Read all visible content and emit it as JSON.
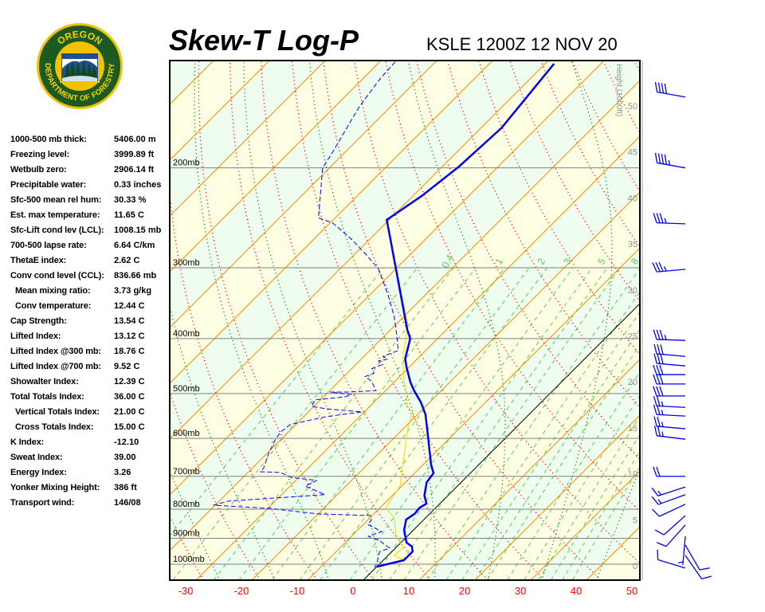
{
  "logo": {
    "top_text": "OREGON",
    "ring_text": "DEPARTMENT OF FORESTRY"
  },
  "header": {
    "title": "Skew-T Log-P",
    "subtitle": "KSLE 1200Z 12 NOV 20"
  },
  "stats": [
    {
      "label": "1000-500 mb thick:",
      "value": "5406.00 m"
    },
    {
      "label": "Freezing level:",
      "value": "3999.89 ft"
    },
    {
      "label": "Wetbulb zero:",
      "value": "2906.14 ft"
    },
    {
      "label": "Precipitable water:",
      "value": "0.33 inches"
    },
    {
      "label": "Sfc-500 mean rel hum:",
      "value": "30.33 %"
    },
    {
      "label": "Est. max temperature:",
      "value": "11.65 C"
    },
    {
      "label": "Sfc-Lift cond lev (LCL):",
      "value": "1008.15 mb"
    },
    {
      "label": "700-500 lapse rate:",
      "value": "6.64 C/km"
    },
    {
      "label": "ThetaE index:",
      "value": "2.62 C"
    },
    {
      "label": "Conv cond level (CCL):",
      "value": "836.66 mb"
    },
    {
      "label": "Mean mixing ratio:",
      "value": "3.73 g/kg",
      "sub": true
    },
    {
      "label": "Conv temperature:",
      "value": "12.44 C",
      "sub": true
    },
    {
      "label": "Cap Strength:",
      "value": "13.54 C"
    },
    {
      "label": "Lifted Index:",
      "value": "13.12 C"
    },
    {
      "label": "Lifted Index @300 mb:",
      "value": "18.76 C"
    },
    {
      "label": "Lifted Index @700 mb:",
      "value": "9.52 C"
    },
    {
      "label": "Showalter Index:",
      "value": "12.39 C"
    },
    {
      "label": "Total Totals Index:",
      "value": "36.00 C"
    },
    {
      "label": "Vertical Totals Index:",
      "value": "21.00 C",
      "sub": true
    },
    {
      "label": "Cross Totals Index:",
      "value": "15.00 C",
      "sub": true
    },
    {
      "label": "K Index:",
      "value": "-12.10"
    },
    {
      "label": "Sweat Index:",
      "value": "39.00"
    },
    {
      "label": "Energy Index:",
      "value": "3.26"
    },
    {
      "label": "Yonker Mixing Height:",
      "value": "386 ft"
    },
    {
      "label": "Transport wind:",
      "value": "146/08"
    }
  ],
  "chart_data": {
    "type": "line",
    "title": "Skew-T Log-P",
    "subtitle": "KSLE 1200Z 12 NOV 20",
    "xlabel": "Temperature (C)",
    "x_ticks": [
      "-30",
      "-20",
      "-10",
      "0",
      "10",
      "20",
      "30",
      "40",
      "50"
    ],
    "x_tick_values": [
      -30,
      -20,
      -10,
      0,
      10,
      20,
      30,
      40,
      50
    ],
    "pressure_levels": [
      200,
      300,
      400,
      500,
      600,
      700,
      800,
      900,
      1000
    ],
    "pressure_labels": [
      "200mb",
      "300mb",
      "400mb",
      "500mb",
      "600mb",
      "700mb",
      "800mb",
      "900mb",
      "1000mb"
    ],
    "height_axis_label": "Height (1000ft)",
    "height_ticks": [
      "0",
      "5",
      "10",
      "15",
      "20",
      "25",
      "30",
      "35",
      "40",
      "45",
      "50"
    ],
    "height_tick_values": [
      0,
      5,
      10,
      15,
      20,
      25,
      30,
      35,
      40,
      45,
      50
    ],
    "mixing_ratio_labels": [
      "0.4",
      "1",
      "2",
      "3",
      "5",
      "8"
    ],
    "mixing_ratio_values": [
      0.4,
      1,
      2,
      3,
      5,
      8
    ],
    "mixing_ratio_lines": [
      0.1,
      0.2,
      0.4,
      0.6,
      1,
      1.5,
      2,
      3,
      4,
      5,
      6,
      8,
      10,
      12,
      14,
      16,
      20,
      24,
      28,
      32,
      36,
      40
    ],
    "pressure_range_mb": [
      1067,
      129
    ],
    "colors": {
      "temperature": "#0000ff",
      "dewpoint": "#0000ff",
      "parcel": "#e0e000",
      "isotherm": "#ff8c00",
      "zero_isotherm": "#000000",
      "dry_adiabat": "#ff0000",
      "moist_adiabat": "#008000",
      "mixing_ratio": "#55cc55",
      "isobar": "#808080",
      "band_a": "#ffffe4",
      "band_b": "#eefdee",
      "axis_labels": "#ff0000",
      "height_labels": "#909090"
    },
    "series": [
      {
        "name": "Temperature",
        "points_p_t": [
          [
            1010,
            0.0
          ],
          [
            984,
            3.7
          ],
          [
            950,
            3.7
          ],
          [
            931,
            2.7
          ],
          [
            916,
            1.0
          ],
          [
            870,
            -1.7
          ],
          [
            834,
            -3.2
          ],
          [
            815,
            -2.7
          ],
          [
            795,
            -2.9
          ],
          [
            782,
            -2.4
          ],
          [
            757,
            -4.2
          ],
          [
            717,
            -6.2
          ],
          [
            691,
            -6.6
          ],
          [
            667,
            -8.6
          ],
          [
            590,
            -14.6
          ],
          [
            544,
            -18.6
          ],
          [
            518,
            -21.6
          ],
          [
            494,
            -24.9
          ],
          [
            478,
            -27.0
          ],
          [
            448,
            -30.6
          ],
          [
            434,
            -32.2
          ],
          [
            400,
            -34.9
          ],
          [
            386,
            -37.0
          ],
          [
            267,
            -56.3
          ],
          [
            247,
            -60.4
          ],
          [
            224,
            -58.4
          ],
          [
            199,
            -57.0
          ],
          [
            170,
            -56.3
          ],
          [
            131,
            -58.4
          ]
        ]
      },
      {
        "name": "Dewpoint",
        "points_p_t": [
          [
            130,
            -87.2
          ],
          [
            139,
            -86.9
          ],
          [
            156,
            -85.6
          ],
          [
            164,
            -84.7
          ],
          [
            187,
            -82.3
          ],
          [
            200,
            -81.2
          ],
          [
            245,
            -73.0
          ],
          [
            250,
            -69.6
          ],
          [
            267,
            -63.3
          ],
          [
            285,
            -57.7
          ],
          [
            301,
            -53.2
          ],
          [
            335,
            -46.7
          ],
          [
            366,
            -41.7
          ],
          [
            394,
            -38.0
          ],
          [
            420,
            -34.9
          ],
          [
            430,
            -36.6
          ],
          [
            435,
            -35.2
          ],
          [
            438,
            -36.6
          ],
          [
            445,
            -35.3
          ],
          [
            452,
            -36.4
          ],
          [
            460,
            -35.2
          ],
          [
            467,
            -36.2
          ],
          [
            475,
            -34.3
          ],
          [
            494,
            -31.7
          ],
          [
            497,
            -36.4
          ],
          [
            497,
            -39.7
          ],
          [
            502,
            -35.4
          ],
          [
            507,
            -36.2
          ],
          [
            513,
            -41.0
          ],
          [
            527,
            -40.4
          ],
          [
            532,
            -37.3
          ],
          [
            539,
            -30.4
          ],
          [
            549,
            -35.9
          ],
          [
            567,
            -41.0
          ],
          [
            584,
            -41.4
          ],
          [
            605,
            -40.9
          ],
          [
            640,
            -39.6
          ],
          [
            676,
            -38.0
          ],
          [
            687,
            -37.9
          ],
          [
            689,
            -34.2
          ],
          [
            703,
            -31.3
          ],
          [
            712,
            -26.2
          ],
          [
            728,
            -27.3
          ],
          [
            754,
            -22.2
          ],
          [
            760,
            -27.0
          ],
          [
            774,
            -38.3
          ],
          [
            787,
            -40.3
          ],
          [
            797,
            -29.9
          ],
          [
            815,
            -20.2
          ],
          [
            821,
            -10.2
          ],
          [
            837,
            -9.3
          ],
          [
            851,
            -9.2
          ],
          [
            876,
            -5.4
          ],
          [
            893,
            -7.0
          ],
          [
            907,
            -4.4
          ],
          [
            937,
            -1.0
          ],
          [
            950,
            -2.2
          ],
          [
            1000,
            -0.5
          ],
          [
            1013,
            -0.3
          ]
        ]
      },
      {
        "name": "Parcel",
        "points_p_t": [
          [
            1000,
            2.4
          ],
          [
            984,
            3.6
          ],
          [
            965,
            1.1
          ],
          [
            934,
            1.3
          ],
          [
            893,
            -2.0
          ],
          [
            829,
            -5.6
          ],
          [
            795,
            -9.0
          ],
          [
            728,
            -10.3
          ],
          [
            634,
            -15.6
          ],
          [
            575,
            -19.3
          ],
          [
            539,
            -21.3
          ],
          [
            527,
            -23.2
          ],
          [
            499,
            -25.9
          ],
          [
            463,
            -29.7
          ],
          [
            424,
            -33.6
          ],
          [
            381,
            -37.4
          ],
          [
            267,
            -56.3
          ],
          [
            247,
            -60.4
          ],
          [
            224,
            -58.4
          ],
          [
            199,
            -57.0
          ],
          [
            170,
            -56.3
          ],
          [
            131,
            -58.4
          ]
        ]
      }
    ],
    "winds": [
      {
        "p": 150,
        "dir": 280,
        "spd": 40
      },
      {
        "p": 200,
        "dir": 280,
        "spd": 45
      },
      {
        "p": 251,
        "dir": 272,
        "spd": 35
      },
      {
        "p": 302,
        "dir": 265,
        "spd": 35
      },
      {
        "p": 403,
        "dir": 272,
        "spd": 35
      },
      {
        "p": 430,
        "dir": 275,
        "spd": 30
      },
      {
        "p": 447,
        "dir": 275,
        "spd": 30
      },
      {
        "p": 463,
        "dir": 270,
        "spd": 30
      },
      {
        "p": 481,
        "dir": 270,
        "spd": 30
      },
      {
        "p": 505,
        "dir": 270,
        "spd": 30
      },
      {
        "p": 529,
        "dir": 273,
        "spd": 25
      },
      {
        "p": 548,
        "dir": 273,
        "spd": 25
      },
      {
        "p": 577,
        "dir": 275,
        "spd": 25
      },
      {
        "p": 602,
        "dir": 277,
        "spd": 25
      },
      {
        "p": 700,
        "dir": 270,
        "spd": 20
      },
      {
        "p": 731,
        "dir": 252,
        "spd": 15
      },
      {
        "p": 754,
        "dir": 250,
        "spd": 15
      },
      {
        "p": 784,
        "dir": 245,
        "spd": 10
      },
      {
        "p": 821,
        "dir": 228,
        "spd": 10
      },
      {
        "p": 853,
        "dir": 222,
        "spd": 10
      },
      {
        "p": 893,
        "dir": 185,
        "spd": 5
      },
      {
        "p": 925,
        "dir": 150,
        "spd": 10
      },
      {
        "p": 965,
        "dir": 145,
        "spd": 10
      },
      {
        "p": 1016,
        "dir": 287,
        "spd": 10
      }
    ]
  }
}
